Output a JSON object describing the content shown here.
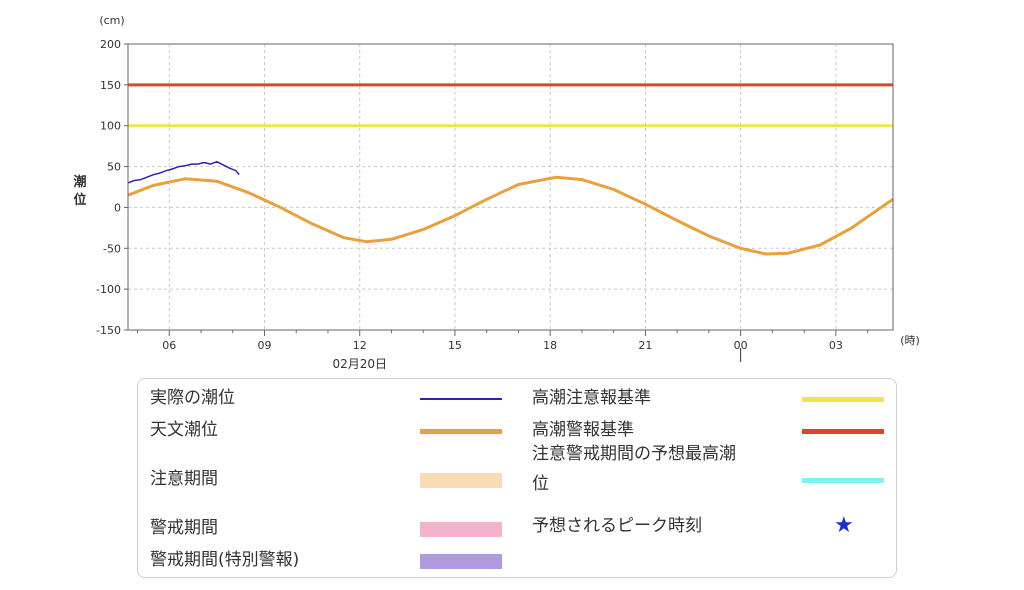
{
  "chart_data": {
    "type": "line",
    "y_unit": "(cm)",
    "ylabel": "潮\n位",
    "x_unit": "(時)",
    "ylim": [
      -150,
      200
    ],
    "yticks": [
      200,
      150,
      100,
      50,
      0,
      -50,
      -100,
      -150
    ],
    "xlim": [
      4.7,
      28.8
    ],
    "xticks": [
      {
        "t": 6,
        "label": "06"
      },
      {
        "t": 9,
        "label": "09"
      },
      {
        "t": 12,
        "label": "12"
      },
      {
        "t": 15,
        "label": "15"
      },
      {
        "t": 18,
        "label": "18"
      },
      {
        "t": 21,
        "label": "21"
      },
      {
        "t": 24,
        "label": "00"
      },
      {
        "t": 27,
        "label": "03"
      }
    ],
    "date_label": {
      "t": 12,
      "text": "02月20日"
    },
    "day_boundary": 24,
    "thresholds": [
      {
        "name": "高潮警報基準",
        "value": 150,
        "color": "#e0442a"
      },
      {
        "name": "高潮注意報基準",
        "value": 100,
        "color": "#f0e64a"
      }
    ],
    "series": [
      {
        "name": "天文潮位",
        "color": "#e8a040",
        "points": [
          [
            4.7,
            15
          ],
          [
            5.5,
            27
          ],
          [
            6.5,
            35
          ],
          [
            7.5,
            32
          ],
          [
            8.5,
            18
          ],
          [
            9.5,
            0
          ],
          [
            10.5,
            -20
          ],
          [
            11.5,
            -37
          ],
          [
            12.2,
            -42
          ],
          [
            13,
            -39
          ],
          [
            14,
            -27
          ],
          [
            15,
            -10
          ],
          [
            16,
            10
          ],
          [
            17,
            28
          ],
          [
            18.2,
            37
          ],
          [
            19,
            34
          ],
          [
            20,
            22
          ],
          [
            21,
            4
          ],
          [
            22,
            -16
          ],
          [
            23,
            -35
          ],
          [
            24,
            -50
          ],
          [
            24.8,
            -57
          ],
          [
            25.5,
            -56
          ],
          [
            26.5,
            -46
          ],
          [
            27.5,
            -25
          ],
          [
            28.2,
            -6
          ],
          [
            28.8,
            10
          ]
        ]
      },
      {
        "name": "実際の潮位",
        "color": "#3a1fa0",
        "points": [
          [
            4.7,
            30
          ],
          [
            4.9,
            33
          ],
          [
            5.1,
            34
          ],
          [
            5.3,
            37
          ],
          [
            5.5,
            40
          ],
          [
            5.7,
            42
          ],
          [
            5.9,
            45
          ],
          [
            6.1,
            47
          ],
          [
            6.3,
            50
          ],
          [
            6.5,
            51
          ],
          [
            6.7,
            53
          ],
          [
            6.9,
            53
          ],
          [
            7.1,
            55
          ],
          [
            7.3,
            53
          ],
          [
            7.5,
            56
          ],
          [
            7.7,
            52
          ],
          [
            7.9,
            48
          ],
          [
            8.1,
            45
          ],
          [
            8.2,
            40
          ]
        ]
      }
    ]
  },
  "legend": {
    "left": [
      {
        "label": "実際の潮位",
        "kind": "thin",
        "color": "#3a1fa0"
      },
      {
        "label": "天文潮位",
        "kind": "line",
        "color": "#e8a040"
      },
      {
        "label": "注意期間",
        "kind": "block",
        "color": "#f8ddb4"
      },
      {
        "label": "警戒期間",
        "kind": "block",
        "color": "#f2b2cc"
      },
      {
        "label": "警戒期間(特別警報)",
        "kind": "block",
        "color": "#b29ae0"
      }
    ],
    "right": [
      {
        "label": "高潮注意報基準",
        "kind": "line",
        "color": "#f0e64a"
      },
      {
        "label": "高潮警報基準",
        "kind": "line",
        "color": "#e0442a"
      },
      {
        "label": "注意警戒期間の予想最高潮",
        "label2": "位",
        "kind": "line",
        "color": "#80f0f0"
      },
      {
        "label": "予想されるピーク時刻",
        "kind": "star",
        "color": "#1a2fd0",
        "symbol": "★"
      }
    ]
  }
}
